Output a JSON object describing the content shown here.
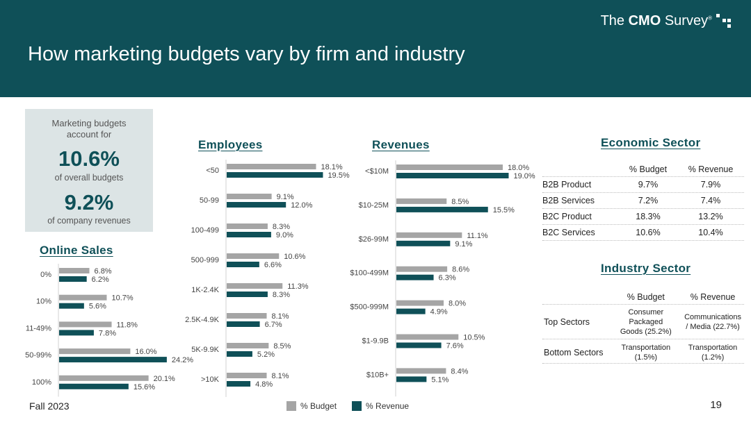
{
  "header": {
    "title": "How marketing budgets vary by firm and industry",
    "logo_prefix": "The ",
    "logo_bold": "CMO",
    "logo_suffix": " Survey",
    "logo_mark": "®"
  },
  "kpi": {
    "intro": "Marketing budgets account for",
    "value1": "10.6%",
    "label1": "of overall budgets",
    "value2": "9.2%",
    "label2": "of company revenues"
  },
  "colors": {
    "budget": "#a5a5a5",
    "revenue": "#0f5058"
  },
  "chart_data": [
    {
      "type": "bar",
      "title": "Online Sales",
      "categories": [
        "0%",
        "10%",
        "11-49%",
        "50-99%",
        "100%"
      ],
      "series": [
        {
          "name": "% Budget",
          "values": [
            6.8,
            10.7,
            11.8,
            16.0,
            20.1
          ]
        },
        {
          "name": "% Revenue",
          "values": [
            6.2,
            5.6,
            7.8,
            24.2,
            15.6
          ]
        }
      ]
    },
    {
      "type": "bar",
      "title": "Employees",
      "categories": [
        "<50",
        "50-99",
        "100-499",
        "500-999",
        "1K-2.4K",
        "2.5K-4.9K",
        "5K-9.9K",
        ">10K"
      ],
      "series": [
        {
          "name": "% Budget",
          "values": [
            18.1,
            9.1,
            8.3,
            10.6,
            11.3,
            8.1,
            8.5,
            8.1
          ]
        },
        {
          "name": "% Revenue",
          "values": [
            19.5,
            12.0,
            9.0,
            6.6,
            8.3,
            6.7,
            5.2,
            4.8
          ]
        }
      ]
    },
    {
      "type": "bar",
      "title": "Revenues",
      "categories": [
        "<$10M",
        "$10-25M",
        "$26-99M",
        "$100-499M",
        "$500-999M",
        "$1-9.9B",
        "$10B+"
      ],
      "series": [
        {
          "name": "% Budget",
          "values": [
            18.0,
            8.5,
            11.1,
            8.6,
            8.0,
            10.5,
            8.4
          ]
        },
        {
          "name": "% Revenue",
          "values": [
            19.0,
            15.5,
            9.1,
            6.3,
            4.9,
            7.6,
            5.1
          ]
        }
      ]
    },
    {
      "type": "table",
      "title": "Economic Sector",
      "columns": [
        "",
        "% Budget",
        "% Revenue"
      ],
      "rows": [
        [
          "B2B Product",
          "9.7%",
          "7.9%"
        ],
        [
          "B2B Services",
          "7.2%",
          "7.4%"
        ],
        [
          "B2C Product",
          "18.3%",
          "13.2%"
        ],
        [
          "B2C Services",
          "10.6%",
          "10.4%"
        ]
      ]
    },
    {
      "type": "table",
      "title": "Industry Sector",
      "columns": [
        "",
        "% Budget",
        "% Revenue"
      ],
      "rows": [
        [
          "Top Sectors",
          "Consumer Packaged Goods (25.2%)",
          "Communications / Media (22.7%)"
        ],
        [
          "Bottom Sectors",
          "Transportation (1.5%)",
          "Transportation (1.2%)"
        ]
      ]
    }
  ],
  "legend": {
    "budget": "% Budget",
    "revenue": "% Revenue"
  },
  "footer": {
    "left": "Fall 2023",
    "page": "19"
  }
}
